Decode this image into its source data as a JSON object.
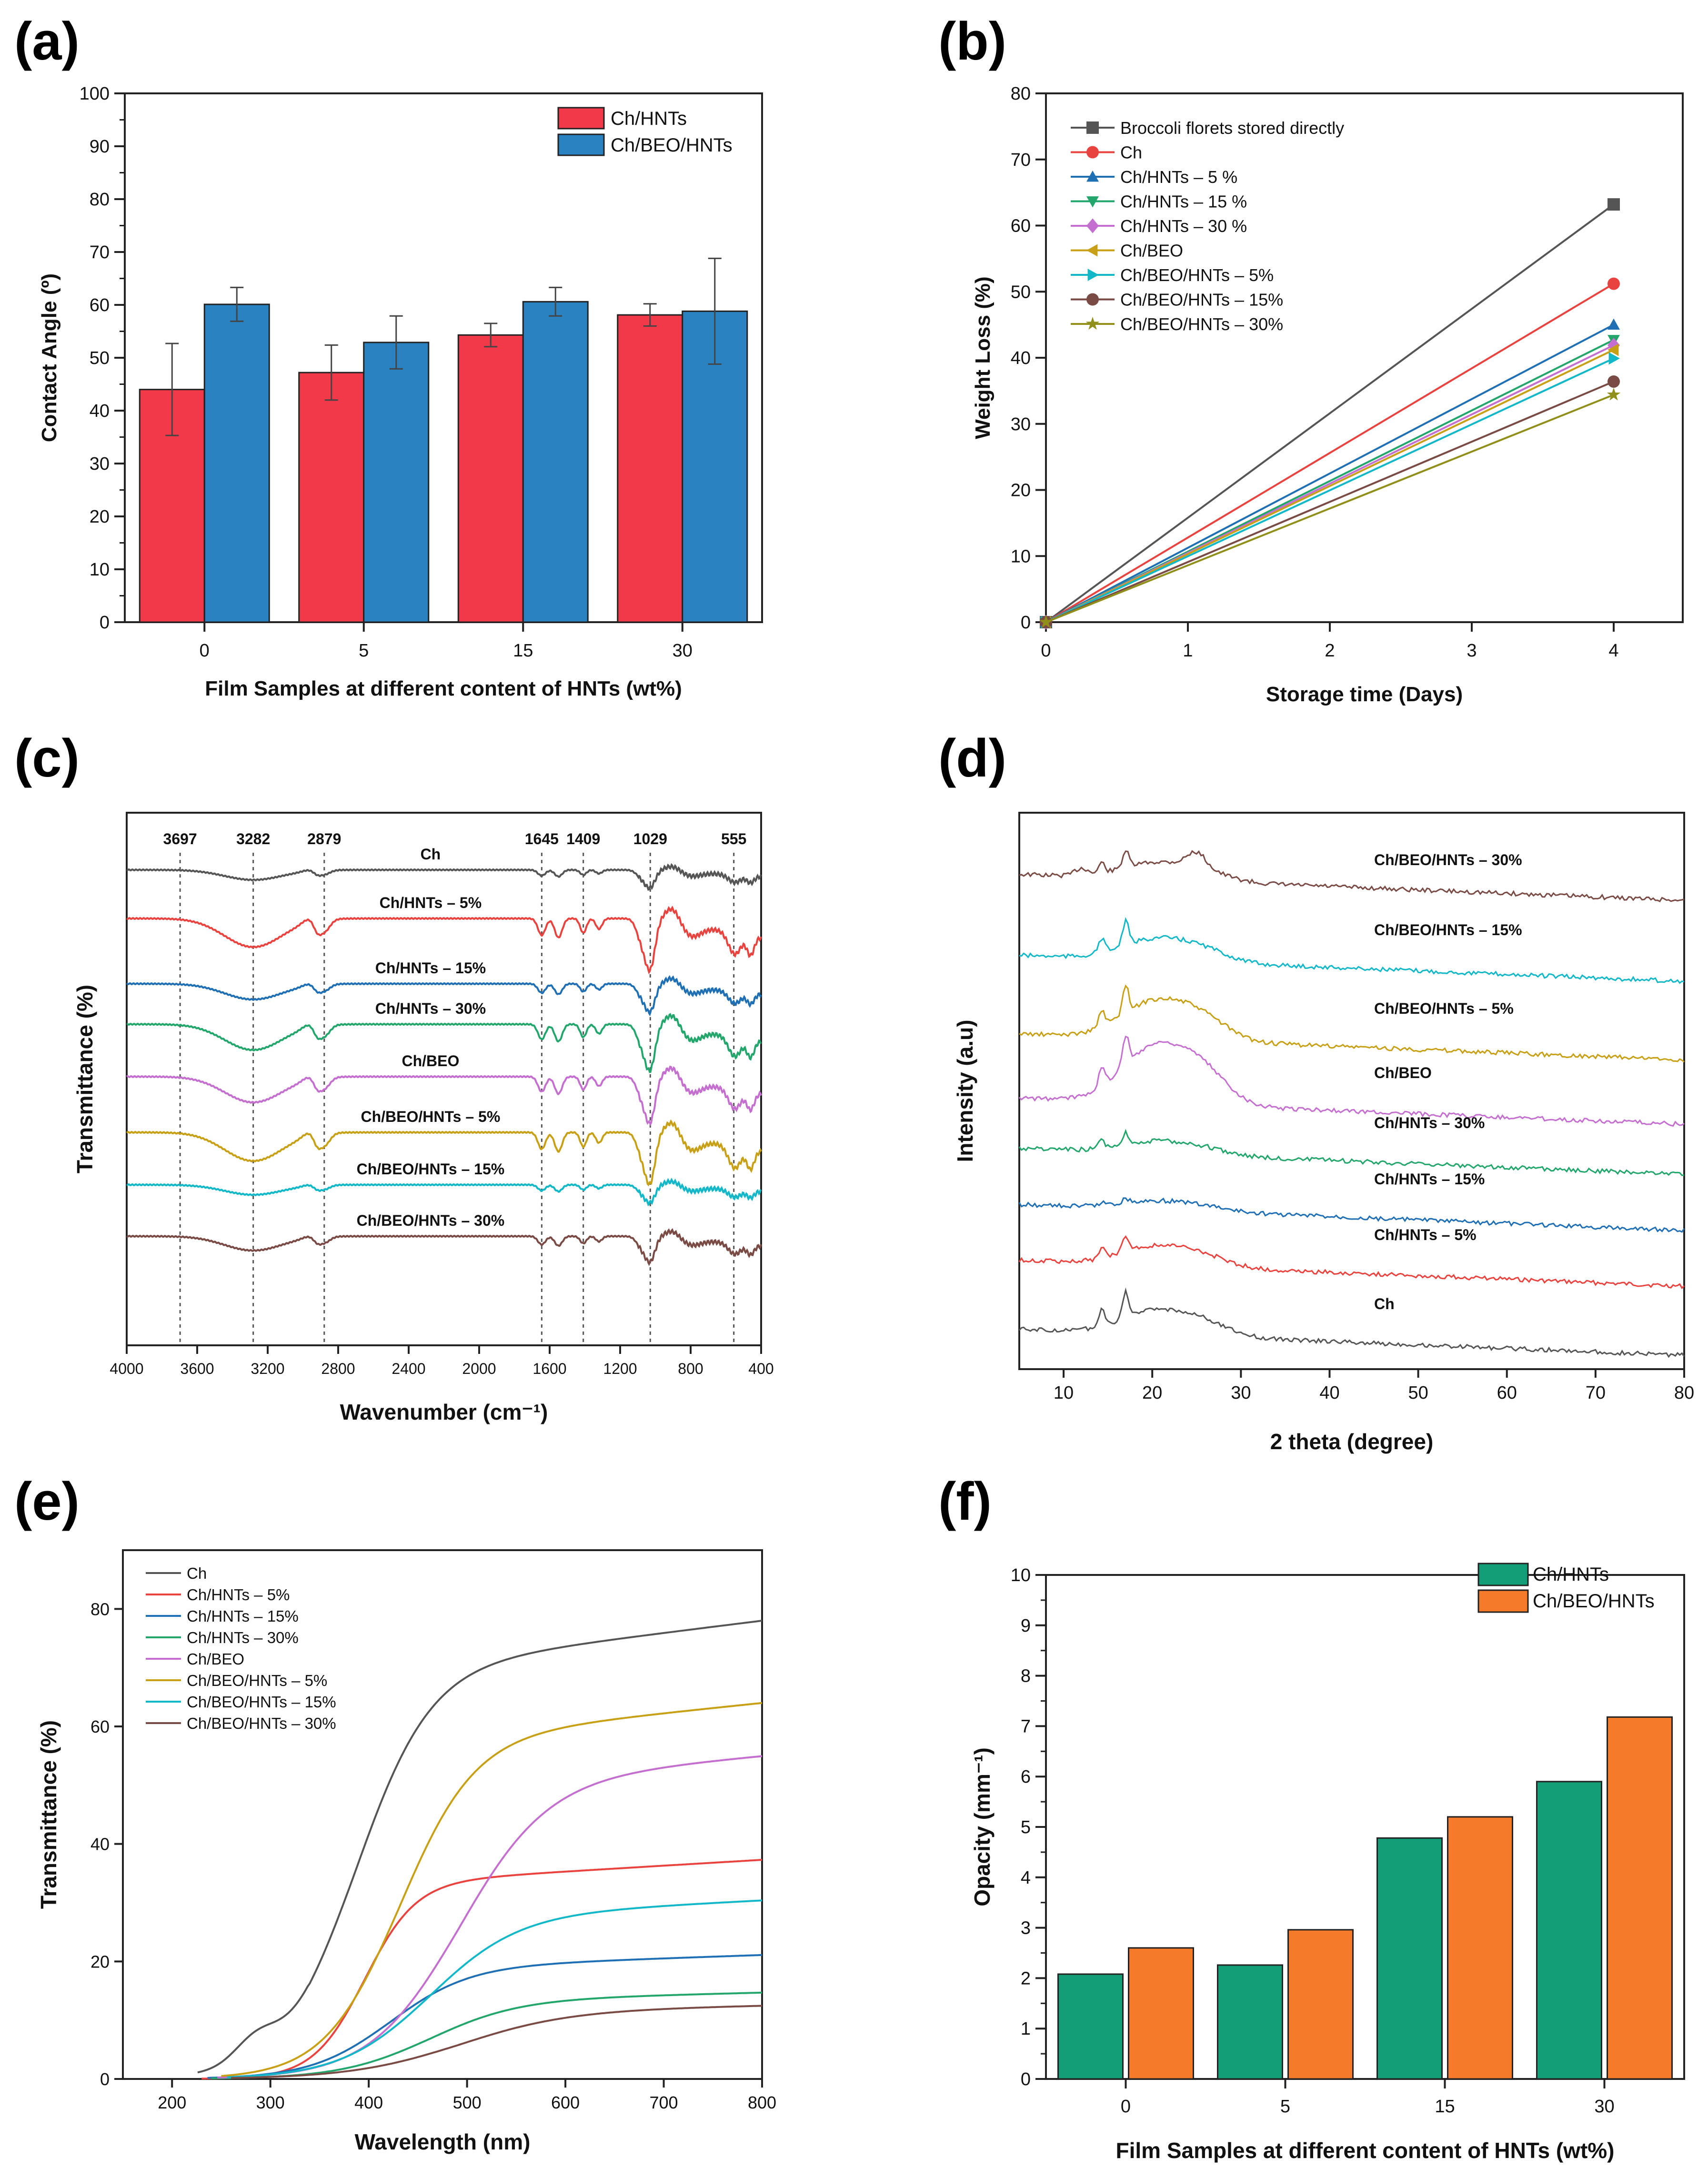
{
  "panel_labels": [
    "(a)",
    "(b)",
    "(c)",
    "(d)",
    "(e)",
    "(f)"
  ],
  "colors": {
    "ch": "#555555",
    "red": "#e8433e",
    "blue": "#1f6fb5",
    "green": "#22a66b",
    "purple": "#c46fd0",
    "gold": "#c8a016",
    "cyan": "#12b8c8",
    "brown": "#7a4a44",
    "olive": "#8f8f1a",
    "bar_red": "#f2394a",
    "bar_blue": "#2a82c0",
    "bar_teal": "#139e78",
    "bar_orange": "#f57a2a"
  },
  "chart_data": [
    {
      "id": "a",
      "type": "bar",
      "title": "",
      "xlabel": "Film Samples at different content of HNTs (wt%)",
      "ylabel": "Contact Angle (º)",
      "categories": [
        "0",
        "5",
        "15",
        "30"
      ],
      "ylim": [
        0,
        100
      ],
      "yticks": [
        0,
        10,
        20,
        30,
        40,
        50,
        60,
        70,
        80,
        90,
        100
      ],
      "legend": "top-right",
      "series": [
        {
          "name": "Ch/HNTs",
          "values": [
            44,
            47.2,
            54.3,
            58.1
          ],
          "errors": [
            8.7,
            5.2,
            2.2,
            2.1
          ]
        },
        {
          "name": "Ch/BEO/HNTs",
          "values": [
            60.1,
            52.9,
            60.6,
            58.8
          ],
          "errors": [
            3.2,
            5.0,
            2.7,
            10.0
          ]
        }
      ]
    },
    {
      "id": "b",
      "type": "line",
      "xlabel": "Storage time (Days)",
      "ylabel": "Weight Loss (%)",
      "xlim": [
        0,
        4
      ],
      "ylim": [
        0,
        80
      ],
      "xticks": [
        0,
        1,
        2,
        3,
        4
      ],
      "yticks": [
        0,
        10,
        20,
        30,
        40,
        50,
        60,
        70,
        80
      ],
      "legend": "top-left",
      "x": [
        0,
        4
      ],
      "series": [
        {
          "name": "Broccoli florets stored directly",
          "values": [
            0,
            63.2
          ],
          "marker": "square"
        },
        {
          "name": "Ch",
          "values": [
            0,
            51.2
          ],
          "marker": "circle"
        },
        {
          "name": "Ch/HNTs – 5 %",
          "values": [
            0,
            45.0
          ],
          "marker": "triangle-up"
        },
        {
          "name": "Ch/HNTs – 15 %",
          "values": [
            0,
            42.7
          ],
          "marker": "triangle-down"
        },
        {
          "name": "Ch/HNTs – 30 %",
          "values": [
            0,
            41.9
          ],
          "marker": "diamond"
        },
        {
          "name": "Ch/BEO",
          "values": [
            0,
            41.2
          ],
          "marker": "triangle-left"
        },
        {
          "name": "Ch/BEO/HNTs – 5%",
          "values": [
            0,
            39.9
          ],
          "marker": "triangle-right"
        },
        {
          "name": "Ch/BEO/HNTs – 15%",
          "values": [
            0,
            36.4
          ],
          "marker": "circle"
        },
        {
          "name": "Ch/BEO/HNTs – 30%",
          "values": [
            0,
            34.4
          ],
          "marker": "star"
        }
      ]
    },
    {
      "id": "c",
      "type": "line",
      "xlabel": "Wavenumber (cm⁻¹)",
      "ylabel": "Transmittance (%)",
      "xlim": [
        4000,
        400
      ],
      "xticks": [
        4000,
        3600,
        3200,
        2800,
        2400,
        2000,
        1600,
        1200,
        800,
        400
      ],
      "peaks": [
        "3697",
        "3282",
        "2879",
        "1645",
        "1409",
        "1029",
        "555"
      ],
      "peak_positions": [
        3697,
        3282,
        2879,
        1645,
        1409,
        1029,
        555
      ],
      "series": [
        {
          "name": "Ch",
          "label_x": 2330,
          "depth": 0.35
        },
        {
          "name": "Ch/HNTs – 5%",
          "label_x": 2330,
          "depth": 1.0
        },
        {
          "name": "Ch/HNTs – 15%",
          "label_x": 2330,
          "depth": 0.55
        },
        {
          "name": "Ch/HNTs – 30%",
          "label_x": 2330,
          "depth": 0.9
        },
        {
          "name": "Ch/BEO",
          "label_x": 2330,
          "depth": 0.9
        },
        {
          "name": "Ch/BEO/HNTs – 5%",
          "label_x": 2330,
          "depth": 1.0
        },
        {
          "name": "Ch/BEO/HNTs – 15%",
          "label_x": 2330,
          "depth": 0.35
        },
        {
          "name": "Ch/BEO/HNTs – 30%",
          "label_x": 2330,
          "depth": 0.5
        }
      ]
    },
    {
      "id": "d",
      "type": "line",
      "xlabel": "2 theta (degree)",
      "ylabel": "Intensity (a.u)",
      "xlim": [
        5,
        80
      ],
      "xticks": [
        10,
        20,
        30,
        40,
        50,
        60,
        70,
        80
      ],
      "series": [
        {
          "name": "Ch/BEO/HNTs – 30%"
        },
        {
          "name": "Ch/BEO/HNTs – 15%"
        },
        {
          "name": "Ch/BEO/HNTs – 5%"
        },
        {
          "name": "Ch/BEO"
        },
        {
          "name": "Ch/HNTs – 30%"
        },
        {
          "name": "Ch/HNTs – 15%"
        },
        {
          "name": "Ch/HNTs – 5%"
        },
        {
          "name": "Ch"
        }
      ]
    },
    {
      "id": "e",
      "type": "line",
      "xlabel": "Wavelength (nm)",
      "ylabel": "Transmittance (%)",
      "xlim": [
        150,
        800
      ],
      "ylim": [
        0,
        90
      ],
      "xticks": [
        200,
        300,
        400,
        500,
        600,
        700,
        800
      ],
      "yticks": [
        0,
        20,
        40,
        60,
        80
      ],
      "legend": "top-left",
      "series": [
        {
          "name": "Ch",
          "final": 78,
          "mid": 385,
          "width": 38
        },
        {
          "name": "Ch/HNTs – 5%",
          "final": 37.3,
          "mid": 395,
          "width": 26
        },
        {
          "name": "Ch/HNTs – 15%",
          "final": 21.1,
          "mid": 420,
          "width": 40
        },
        {
          "name": "Ch/HNTs – 30%",
          "final": 14.7,
          "mid": 460,
          "width": 45
        },
        {
          "name": "Ch/BEO",
          "final": 55,
          "mid": 490,
          "width": 45
        },
        {
          "name": "Ch/BEO/HNTs – 5%",
          "final": 64,
          "mid": 430,
          "width": 38
        },
        {
          "name": "Ch/BEO/HNTs – 15%",
          "final": 30.4,
          "mid": 460,
          "width": 45
        },
        {
          "name": "Ch/BEO/HNTs – 30%",
          "final": 12.5,
          "mid": 490,
          "width": 55
        }
      ]
    },
    {
      "id": "f",
      "type": "bar",
      "xlabel": "Film Samples at different content of HNTs (wt%)",
      "ylabel": "Opacity (mm⁻¹)",
      "categories": [
        "0",
        "5",
        "15",
        "30"
      ],
      "ylim": [
        0,
        10
      ],
      "yticks": [
        0,
        1,
        2,
        3,
        4,
        5,
        6,
        7,
        8,
        9,
        10
      ],
      "legend": "top-right",
      "series": [
        {
          "name": "Ch/HNTs",
          "values": [
            2.08,
            2.26,
            4.78,
            5.9
          ]
        },
        {
          "name": "Ch/BEO/HNTs",
          "values": [
            2.6,
            2.96,
            5.2,
            7.18
          ]
        }
      ]
    }
  ]
}
